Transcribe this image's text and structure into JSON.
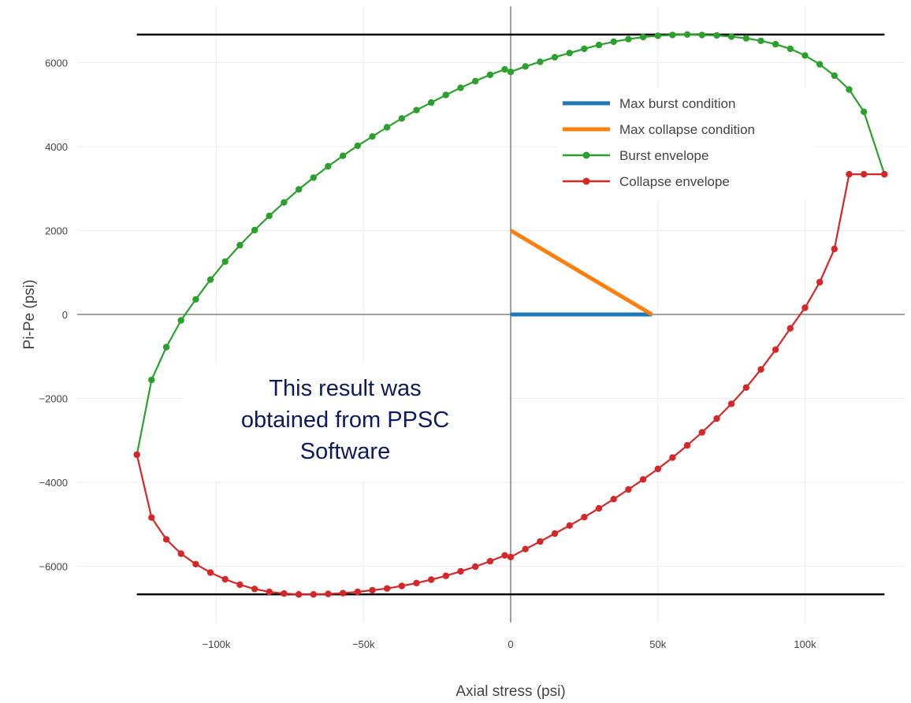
{
  "chart_data": {
    "type": "scatter",
    "xlabel": "Axial stress (psi)",
    "ylabel": "Pi-Pe (psi)",
    "xlim": [
      -130000,
      130000
    ],
    "ylim": [
      -7200,
      7250
    ],
    "x_ticks": [
      {
        "value": -100000,
        "label": "−100k"
      },
      {
        "value": -50000,
        "label": "−50k"
      },
      {
        "value": 0,
        "label": "0"
      },
      {
        "value": 50000,
        "label": "50k"
      },
      {
        "value": 100000,
        "label": "100k"
      }
    ],
    "y_ticks": [
      {
        "value": 6000,
        "label": "6000"
      },
      {
        "value": 4000,
        "label": "4000"
      },
      {
        "value": 2000,
        "label": "2000"
      },
      {
        "value": 0,
        "label": "0"
      },
      {
        "value": -2000,
        "label": "−2000"
      },
      {
        "value": -4000,
        "label": "−4000"
      },
      {
        "value": -6000,
        "label": "−6000"
      }
    ],
    "grid": true,
    "legend_position": "top-right",
    "reference_lines": [
      {
        "y": 6670,
        "x_from": -127000,
        "x_to": 127000,
        "color": "#000000"
      },
      {
        "y": -6670,
        "x_from": -127000,
        "x_to": 127000,
        "color": "#000000"
      }
    ],
    "series": [
      {
        "name": "Max burst condition",
        "mode": "line",
        "color": "#1f77b4",
        "x": [
          0,
          48000
        ],
        "y": [
          0,
          0
        ]
      },
      {
        "name": "Max collapse condition",
        "mode": "line",
        "color": "#ff7f0e",
        "x": [
          0,
          48000
        ],
        "y": [
          2000,
          0
        ]
      },
      {
        "name": "Burst envelope",
        "mode": "lines+markers",
        "color": "#2ca02c",
        "x": [
          -127000,
          -122000,
          -117000,
          -112000,
          -107000,
          -102000,
          -97000,
          -92000,
          -87000,
          -82000,
          -77000,
          -72000,
          -67000,
          -62000,
          -57000,
          -52000,
          -47000,
          -42000,
          -37000,
          -32000,
          -27000,
          -22000,
          -17000,
          -12000,
          -7000,
          -2000,
          0,
          5000,
          10000,
          15000,
          20000,
          25000,
          30000,
          35000,
          40000,
          45000,
          50000,
          55000,
          60000,
          65000,
          70000,
          75000,
          80000,
          85000,
          90000,
          95000,
          100000,
          105000,
          110000,
          115000,
          120000,
          127000
        ],
        "y": [
          -3340,
          -1560,
          -780,
          -140,
          360,
          830,
          1260,
          1650,
          2010,
          2350,
          2670,
          2980,
          3260,
          3530,
          3780,
          4020,
          4240,
          4460,
          4670,
          4870,
          5050,
          5230,
          5400,
          5560,
          5710,
          5840,
          5780,
          5910,
          6020,
          6130,
          6230,
          6330,
          6420,
          6500,
          6560,
          6610,
          6640,
          6660,
          6670,
          6660,
          6650,
          6620,
          6580,
          6520,
          6440,
          6330,
          6170,
          5960,
          5690,
          5360,
          4830,
          3340
        ]
      },
      {
        "name": "Collapse envelope",
        "mode": "lines+markers",
        "color": "#d62728",
        "x": [
          -127000,
          -122000,
          -117000,
          -112000,
          -107000,
          -102000,
          -97000,
          -92000,
          -87000,
          -82000,
          -77000,
          -72000,
          -67000,
          -62000,
          -57000,
          -52000,
          -47000,
          -42000,
          -37000,
          -32000,
          -27000,
          -22000,
          -17000,
          -12000,
          -7000,
          -2000,
          0,
          5000,
          10000,
          15000,
          20000,
          25000,
          30000,
          35000,
          40000,
          45000,
          50000,
          55000,
          60000,
          65000,
          70000,
          75000,
          80000,
          85000,
          90000,
          95000,
          100000,
          105000,
          110000,
          115000,
          120000,
          127000
        ],
        "y": [
          -3340,
          -4840,
          -5360,
          -5700,
          -5950,
          -6150,
          -6310,
          -6440,
          -6540,
          -6610,
          -6650,
          -6670,
          -6670,
          -6660,
          -6640,
          -6610,
          -6570,
          -6530,
          -6470,
          -6400,
          -6320,
          -6230,
          -6120,
          -6010,
          -5880,
          -5740,
          -5780,
          -5590,
          -5410,
          -5220,
          -5030,
          -4830,
          -4620,
          -4400,
          -4170,
          -3930,
          -3680,
          -3410,
          -3120,
          -2810,
          -2480,
          -2130,
          -1740,
          -1310,
          -840,
          -330,
          160,
          770,
          1560,
          3340,
          3340,
          3340
        ]
      }
    ],
    "annotation": {
      "lines": [
        "This result was",
        "obtained from PPSC",
        "Software"
      ]
    }
  }
}
